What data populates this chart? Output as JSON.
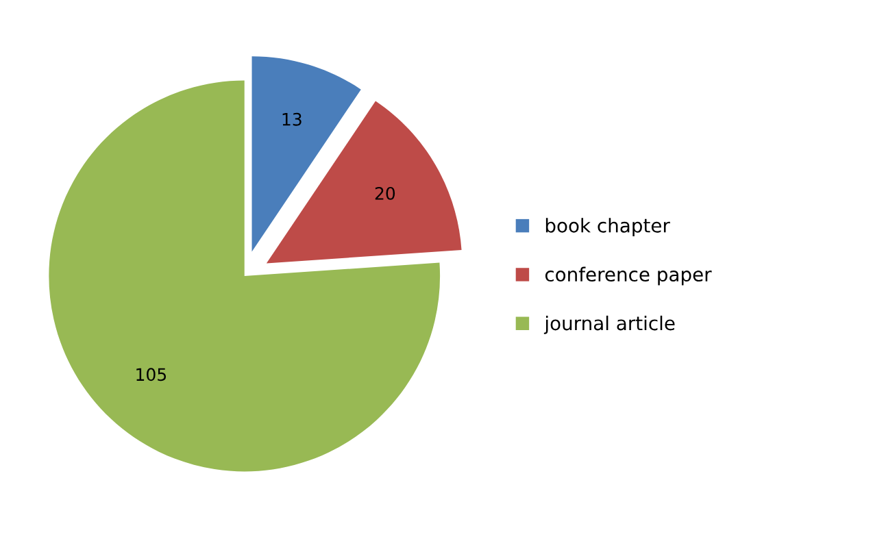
{
  "chart_data": {
    "type": "pie",
    "categories": [
      "book chapter",
      "conference paper",
      "journal article"
    ],
    "values": [
      13,
      20,
      105
    ],
    "colors": [
      "#4a7ebb",
      "#be4b48",
      "#98b954"
    ],
    "data_labels": true,
    "legend": "right"
  }
}
